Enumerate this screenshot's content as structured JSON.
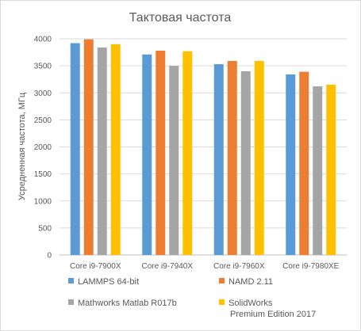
{
  "chart_data": {
    "type": "bar",
    "title": "Тактовая частота",
    "ylabel": "Усредненная частота, МГц",
    "xlabel": "",
    "ylim": [
      0,
      4000
    ],
    "yticks": [
      0,
      500,
      1000,
      1500,
      2000,
      2500,
      3000,
      3500,
      4000
    ],
    "grid": true,
    "legend_position": "bottom",
    "categories": [
      "Core i9-7900X",
      "Core i9-7940X",
      "Core i9-7960X",
      "Core i9-7980XE"
    ],
    "series": [
      {
        "name": "LAMMPS 64-bit",
        "color": "#5b9bd5",
        "values": [
          3920,
          3710,
          3530,
          3340
        ]
      },
      {
        "name": "NAMD 2.11",
        "color": "#ed7d31",
        "values": [
          3990,
          3780,
          3590,
          3390
        ]
      },
      {
        "name": "Mathworks Matlab R017b",
        "color": "#a5a5a5",
        "values": [
          3840,
          3500,
          3400,
          3120
        ]
      },
      {
        "name": "SolidWorks Premium Edition 2017",
        "name_lines": [
          "SolidWorks",
          "Premium Edition 2017"
        ],
        "color": "#ffc000",
        "values": [
          3900,
          3770,
          3590,
          3150
        ]
      }
    ]
  }
}
